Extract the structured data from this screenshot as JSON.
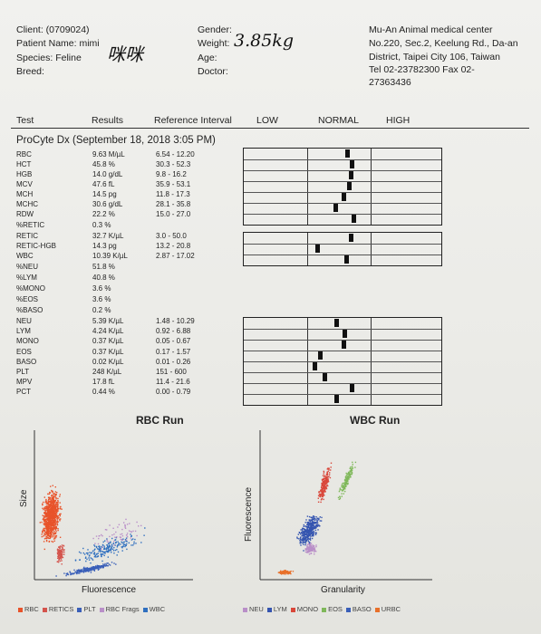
{
  "header": {
    "client_label": "Client: (0709024)",
    "patient_label": "Patient Name: mimi",
    "patient_handwriting": "咪咪",
    "species_label": "Species: Feline",
    "breed_label": "Breed:",
    "gender_label": "Gender:",
    "weight_label": "Weight:",
    "weight_handwriting": "3.85kg",
    "age_label": "Age:",
    "doctor_label": "Doctor:",
    "clinic_name": "Mu-An Animal medical center",
    "clinic_addr1": "No.220, Sec.2, Keelung Rd., Da-an",
    "clinic_addr2": "District, Taipei City 106, Taiwan",
    "clinic_phone": "Tel 02-23782300  Fax 02-",
    "clinic_fax_cont": "27363436"
  },
  "columns": {
    "test": "Test",
    "results": "Results",
    "reference": "Reference Interval",
    "low": "LOW",
    "normal": "NORMAL",
    "high": "HIGH"
  },
  "section_title": "ProCyte Dx (September 18, 2018 3:05 PM)",
  "rows": [
    {
      "test": "RBC",
      "result": "9.63 M/µL",
      "ref": "6.54 - 12.20",
      "level": 0.525
    },
    {
      "test": "HCT",
      "result": "45.8 %",
      "ref": "30.3 - 52.3",
      "level": 0.545
    },
    {
      "test": "HGB",
      "result": "14.0 g/dL",
      "ref": "9.8 - 16.2",
      "level": 0.54
    },
    {
      "test": "MCV",
      "result": "47.6 fL",
      "ref": "35.9 - 53.1",
      "level": 0.53
    },
    {
      "test": "MCH",
      "result": "14.5 pg",
      "ref": "11.8 - 17.3",
      "level": 0.505
    },
    {
      "test": "MCHC",
      "result": "30.6 g/dL",
      "ref": "28.1 - 35.8",
      "level": 0.465
    },
    {
      "test": "RDW",
      "result": "22.2 %",
      "ref": "15.0 - 27.0",
      "level": 0.555
    },
    {
      "test": "%RETIC",
      "result": "0.3 %",
      "ref": ""
    },
    {
      "test": "RETIC",
      "result": "32.7 K/µL",
      "ref": "3.0 - 50.0",
      "level": 0.54
    },
    {
      "test": "RETIC-HGB",
      "result": "14.3 pg",
      "ref": "13.2 - 20.8",
      "level": 0.37
    },
    {
      "test": "WBC",
      "result": "10.39 K/µL",
      "ref": "2.87 - 17.02",
      "level": 0.52
    },
    {
      "test": "%NEU",
      "result": "51.8 %",
      "ref": ""
    },
    {
      "test": "%LYM",
      "result": "40.8 %",
      "ref": ""
    },
    {
      "test": "%MONO",
      "result": "3.6 %",
      "ref": ""
    },
    {
      "test": "%EOS",
      "result": "3.6 %",
      "ref": ""
    },
    {
      "test": "%BASO",
      "result": "0.2 %",
      "ref": ""
    },
    {
      "test": "NEU",
      "result": "5.39 K/µL",
      "ref": "1.48 - 10.29",
      "level": 0.47
    },
    {
      "test": "LYM",
      "result": "4.24 K/µL",
      "ref": "0.92 - 6.88",
      "level": 0.51
    },
    {
      "test": "MONO",
      "result": "0.37 K/µL",
      "ref": "0.05 - 0.67",
      "level": 0.505
    },
    {
      "test": "EOS",
      "result": "0.37 K/µL",
      "ref": "0.17 - 1.57",
      "level": 0.385
    },
    {
      "test": "BASO",
      "result": "0.02 K/µL",
      "ref": "0.01 - 0.26",
      "level": 0.36
    },
    {
      "test": "PLT",
      "result": "248 K/µL",
      "ref": "151 - 600",
      "level": 0.41
    },
    {
      "test": "MPV",
      "result": "17.8 fL",
      "ref": "11.4 - 21.6",
      "level": 0.545
    },
    {
      "test": "PCT",
      "result": "0.44 %",
      "ref": "0.00 - 0.79",
      "level": 0.47
    }
  ],
  "rbc_run": {
    "title": "RBC Run",
    "y_label": "Size",
    "x_label": "Fluorescence",
    "legend": [
      {
        "label": "RBC",
        "color": "#e8532a"
      },
      {
        "label": "RETICS",
        "color": "#d4544c"
      },
      {
        "label": "PLT",
        "color": "#3a5fb8"
      },
      {
        "label": "RBC Frags",
        "color": "#b98fc8"
      },
      {
        "label": "WBC",
        "color": "#2f6fbf"
      }
    ]
  },
  "wbc_run": {
    "title": "WBC Run",
    "y_label": "Fluorescence",
    "x_label": "Granularity",
    "legend": [
      {
        "label": "NEU",
        "color": "#b98fc8"
      },
      {
        "label": "LYM",
        "color": "#3555b0"
      },
      {
        "label": "MONO",
        "color": "#d9473a"
      },
      {
        "label": "EOS",
        "color": "#7fb85a"
      },
      {
        "label": "BASO",
        "color": "#3a5fb8"
      },
      {
        "label": "URBC",
        "color": "#e8702a"
      }
    ]
  }
}
